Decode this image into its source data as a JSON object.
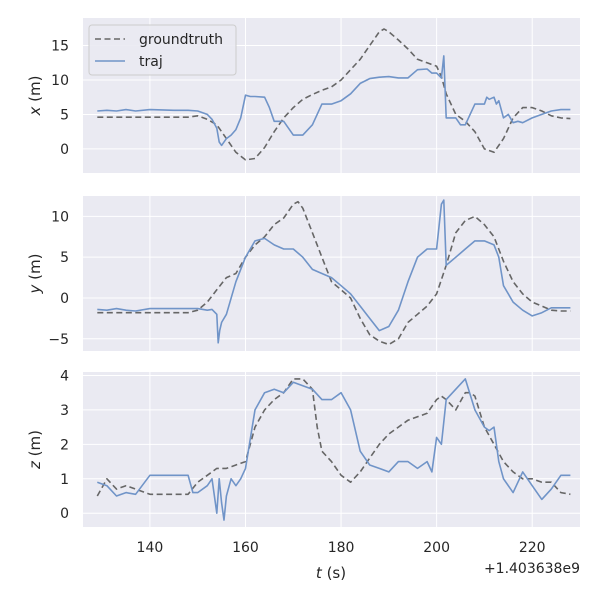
{
  "chart_data": {
    "type": "line",
    "x_offset_label": "+1.403638e9",
    "xlabel_var": "t",
    "xlabel_unit": " (s)",
    "xlim": [
      126,
      230
    ],
    "xticks": [
      140,
      160,
      180,
      200,
      220
    ],
    "grid": true,
    "legend": {
      "placement": "top-left",
      "entries": [
        "groundtruth",
        "traj"
      ]
    },
    "colors": {
      "groundtruth": "#666666",
      "traj": "#7094c8",
      "background": "#eaeaf2",
      "grid": "#ffffff"
    },
    "subplots": [
      {
        "ylabel_var": "x",
        "ylabel_unit": " (m)",
        "ylim": [
          -3.5,
          19
        ],
        "yticks": [
          0,
          5,
          10,
          15
        ],
        "series": [
          {
            "name": "groundtruth",
            "style": "dashed",
            "x": [
              129,
              135,
              140,
              148,
              150,
              152,
              154,
              156,
              158,
              160,
              162,
              164,
              166,
              168,
              170,
              172,
              174,
              176,
              178,
              180,
              182,
              184,
              186,
              188,
              189,
              190,
              192,
              194,
              196,
              198,
              200,
              201,
              202,
              204,
              206,
              208,
              210,
              212,
              214,
              216,
              218,
              220,
              222,
              224,
              226,
              228
            ],
            "y": [
              4.6,
              4.6,
              4.6,
              4.6,
              4.8,
              4.3,
              3.5,
              1.5,
              -0.5,
              -1.6,
              -1.4,
              0.2,
              2.5,
              4.5,
              6.0,
              7.2,
              7.9,
              8.5,
              9.0,
              10.0,
              11.5,
              13.0,
              15.0,
              17.0,
              17.4,
              17.0,
              15.8,
              14.5,
              13.0,
              12.5,
              12.0,
              10.5,
              8.0,
              5.0,
              4.0,
              2.5,
              0.0,
              -0.5,
              1.5,
              4.5,
              6.0,
              6.0,
              5.5,
              4.8,
              4.5,
              4.4
            ]
          },
          {
            "name": "traj",
            "style": "solid",
            "x": [
              129,
              131,
              133,
              135,
              137,
              140,
              145,
              148,
              150,
              152,
              153,
              154,
              154.5,
              155,
              156,
              157,
              158,
              159,
              160,
              161,
              162,
              164,
              165,
              166,
              168,
              169,
              170,
              172,
              174,
              176,
              178,
              180,
              182,
              184,
              186,
              188,
              190,
              192,
              194,
              196,
              198,
              199,
              200,
              201,
              201.5,
              202,
              204,
              205,
              206,
              208,
              210,
              210.5,
              211,
              212,
              212.5,
              213,
              214,
              215,
              216,
              217,
              218,
              220,
              222,
              224,
              226,
              228
            ],
            "y": [
              5.5,
              5.6,
              5.5,
              5.7,
              5.5,
              5.7,
              5.6,
              5.6,
              5.5,
              5.0,
              4.3,
              3.0,
              1.0,
              0.5,
              1.5,
              2.0,
              2.8,
              4.5,
              7.8,
              7.6,
              7.6,
              7.5,
              6.0,
              4.0,
              4.0,
              3.0,
              2.0,
              2.0,
              3.5,
              6.5,
              6.5,
              7.0,
              8.0,
              9.5,
              10.2,
              10.4,
              10.5,
              10.3,
              10.3,
              11.5,
              11.6,
              11.0,
              11.0,
              10.3,
              13.5,
              4.5,
              4.5,
              3.5,
              3.5,
              6.5,
              6.5,
              7.5,
              7.2,
              7.5,
              6.5,
              7.0,
              4.5,
              5.0,
              3.8,
              4.0,
              3.8,
              4.5,
              5.0,
              5.5,
              5.7,
              5.7
            ]
          }
        ]
      },
      {
        "ylabel_var": "y",
        "ylabel_unit": " (m)",
        "ylim": [
          -6.5,
          12.5
        ],
        "yticks": [
          -5,
          0,
          5,
          10
        ],
        "series": [
          {
            "name": "groundtruth",
            "style": "dashed",
            "x": [
              129,
              135,
              140,
              148,
              150,
              152,
              154,
              156,
              158,
              160,
              162,
              164,
              166,
              168,
              170,
              171,
              172,
              174,
              176,
              178,
              180,
              182,
              184,
              186,
              188,
              190,
              192,
              194,
              196,
              198,
              200,
              202,
              204,
              206,
              208,
              210,
              212,
              214,
              216,
              218,
              220,
              222,
              224,
              226,
              228
            ],
            "y": [
              -1.8,
              -1.8,
              -1.8,
              -1.8,
              -1.5,
              -0.5,
              1.0,
              2.5,
              3.0,
              5.0,
              6.5,
              7.5,
              9.0,
              9.8,
              11.5,
              11.8,
              11.0,
              8.0,
              5.0,
              2.0,
              1.0,
              0.0,
              -2.5,
              -4.5,
              -5.3,
              -5.7,
              -5.0,
              -3.0,
              -2.0,
              -1.0,
              0.5,
              4.0,
              8.0,
              9.5,
              10.0,
              9.0,
              7.5,
              4.5,
              2.0,
              0.5,
              -0.5,
              -1.0,
              -1.5,
              -1.6,
              -1.6
            ]
          },
          {
            "name": "traj",
            "style": "solid",
            "x": [
              129,
              131,
              133,
              135,
              137,
              140,
              145,
              148,
              150,
              152,
              153,
              154,
              154.3,
              154.6,
              155,
              156,
              158,
              160,
              162,
              164,
              166,
              168,
              170,
              172,
              174,
              176,
              178,
              180,
              182,
              184,
              186,
              188,
              190,
              192,
              194,
              196,
              198,
              200,
              201,
              201.5,
              202,
              203,
              204,
              206,
              208,
              210,
              212,
              213,
              214,
              216,
              218,
              220,
              222,
              224,
              226,
              228
            ],
            "y": [
              -1.4,
              -1.5,
              -1.3,
              -1.5,
              -1.6,
              -1.3,
              -1.3,
              -1.3,
              -1.3,
              -1.5,
              -1.4,
              -2.0,
              -5.5,
              -4.0,
              -3.0,
              -2.0,
              2.0,
              5.0,
              7.0,
              7.3,
              6.5,
              6.0,
              6.0,
              5.0,
              3.5,
              3.0,
              2.5,
              1.5,
              0.5,
              -1.0,
              -2.5,
              -4.0,
              -3.5,
              -1.5,
              2.0,
              5.0,
              6.0,
              6.0,
              11.5,
              12.0,
              4.0,
              4.5,
              5.0,
              6.0,
              7.0,
              7.0,
              6.5,
              5.0,
              1.5,
              -0.5,
              -1.5,
              -2.2,
              -1.8,
              -1.2,
              -1.2,
              -1.2
            ]
          }
        ]
      },
      {
        "ylabel_var": "z",
        "ylabel_unit": " (m)",
        "ylim": [
          -0.4,
          4.1
        ],
        "yticks": [
          0,
          1,
          2,
          3,
          4
        ],
        "series": [
          {
            "name": "groundtruth",
            "style": "dashed",
            "x": [
              129,
              131,
              133,
              135,
              137,
              140,
              145,
              148,
              150,
              152,
              154,
              156,
              158,
              160,
              162,
              164,
              166,
              168,
              170,
              172,
              174,
              175,
              176,
              178,
              180,
              182,
              184,
              186,
              188,
              190,
              192,
              194,
              196,
              198,
              200,
              201,
              202,
              204,
              206,
              207,
              208,
              210,
              212,
              214,
              216,
              218,
              220,
              222,
              224,
              226,
              228
            ],
            "y": [
              0.5,
              1.0,
              0.7,
              0.8,
              0.7,
              0.55,
              0.55,
              0.55,
              0.9,
              1.1,
              1.3,
              1.3,
              1.4,
              1.5,
              2.5,
              3.0,
              3.3,
              3.5,
              3.9,
              3.9,
              3.6,
              2.5,
              1.8,
              1.5,
              1.1,
              0.9,
              1.2,
              1.6,
              2.0,
              2.3,
              2.5,
              2.7,
              2.8,
              2.9,
              3.3,
              3.4,
              3.3,
              3.0,
              3.5,
              3.5,
              3.4,
              2.5,
              2.0,
              1.5,
              1.2,
              1.0,
              1.0,
              0.9,
              0.9,
              0.6,
              0.55
            ]
          },
          {
            "name": "traj",
            "style": "solid",
            "x": [
              129,
              131,
              133,
              135,
              137,
              140,
              145,
              148,
              149,
              150,
              152,
              153,
              154,
              154.5,
              155,
              155.5,
              156,
              157,
              158,
              159,
              160,
              162,
              164,
              166,
              168,
              170,
              172,
              174,
              176,
              178,
              180,
              182,
              184,
              186,
              188,
              190,
              192,
              194,
              196,
              198,
              199,
              200,
              201,
              202,
              204,
              206,
              208,
              210,
              211,
              212,
              213,
              214,
              216,
              218,
              220,
              222,
              224,
              226,
              228
            ],
            "y": [
              0.9,
              0.8,
              0.5,
              0.6,
              0.55,
              1.1,
              1.1,
              1.1,
              0.6,
              0.6,
              0.8,
              1.0,
              0.0,
              1.0,
              0.3,
              -0.2,
              0.5,
              1.0,
              0.8,
              1.0,
              1.3,
              3.0,
              3.5,
              3.6,
              3.5,
              3.8,
              3.7,
              3.6,
              3.3,
              3.3,
              3.5,
              3.0,
              1.8,
              1.4,
              1.3,
              1.2,
              1.5,
              1.5,
              1.3,
              1.5,
              1.2,
              2.2,
              2.0,
              3.3,
              3.6,
              3.9,
              3.0,
              2.5,
              2.4,
              2.5,
              1.5,
              1.0,
              0.6,
              1.2,
              0.8,
              0.4,
              0.7,
              1.1,
              1.1
            ]
          }
        ]
      }
    ]
  }
}
